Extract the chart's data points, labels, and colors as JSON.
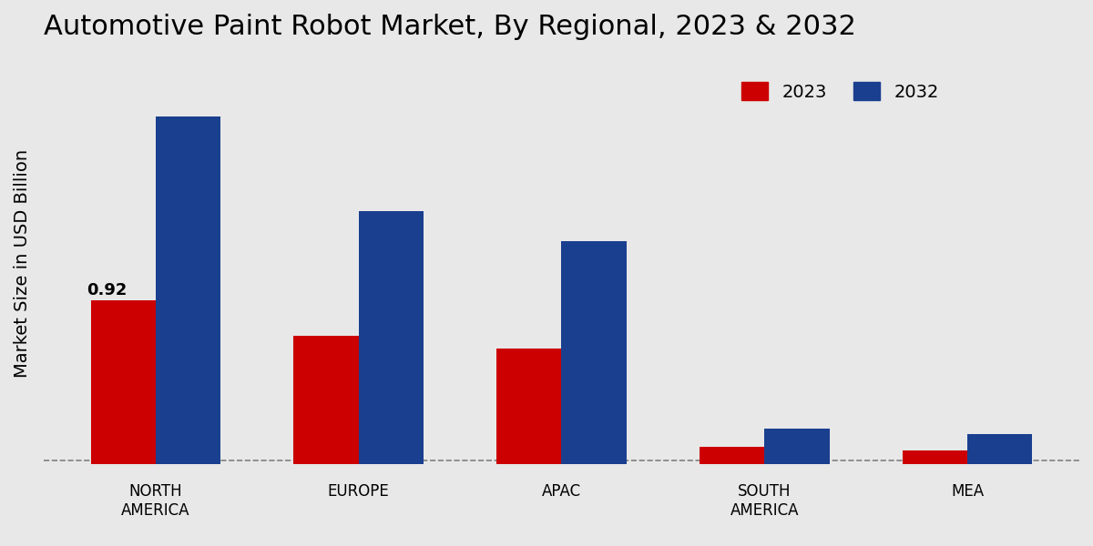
{
  "title": "Automotive Paint Robot Market, By Regional, 2023 & 2032",
  "ylabel": "Market Size in USD Billion",
  "categories": [
    "NORTH\nAMERICA",
    "EUROPE",
    "APAC",
    "SOUTH\nAMERICA",
    "MEA"
  ],
  "values_2023": [
    0.92,
    0.72,
    0.65,
    0.1,
    0.08
  ],
  "values_2032": [
    1.95,
    1.42,
    1.25,
    0.2,
    0.17
  ],
  "color_2023": "#cc0000",
  "color_2032": "#1a3f8f",
  "annotation_label": "0.92",
  "annotation_bar_index": 0,
  "annotation_series": "2023",
  "background_color": "#e8e8e8",
  "title_fontsize": 22,
  "legend_fontsize": 14,
  "ylabel_fontsize": 14,
  "tick_fontsize": 12,
  "bar_width": 0.32,
  "dashed_line_y": 0.0,
  "ylim": [
    -0.05,
    2.3
  ]
}
